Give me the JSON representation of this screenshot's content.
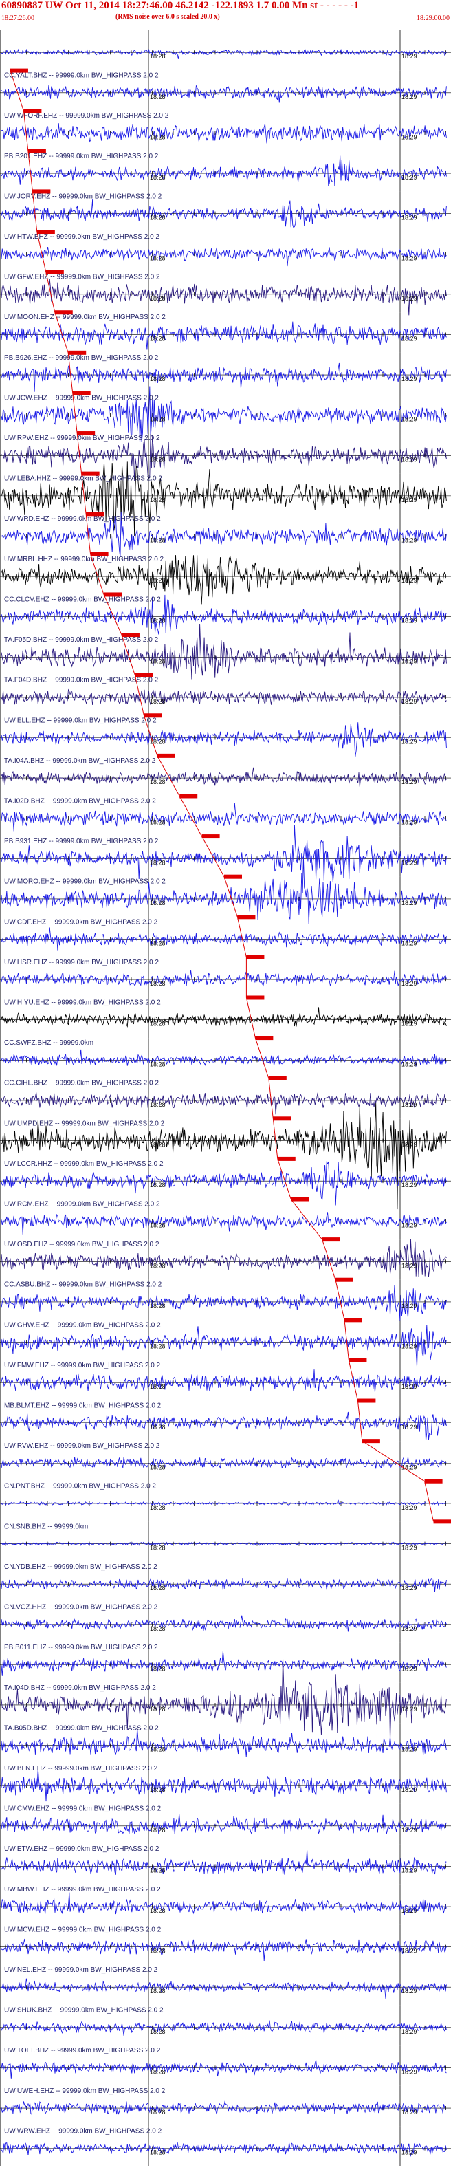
{
  "header": {
    "title": "60890887 UW Oct 11, 2014 18:27:46.00    46.2142  -122.1893   1.7 0.00  Mn st  - - - - -  -1",
    "subtitle": "(RMS noise over 6.0 s scaled 20.0 x)",
    "start_time": "18:27:26.00",
    "end_time": "18:29:00.00"
  },
  "tick_labels": {
    "first": "18:28",
    "second": "18:29"
  },
  "colors": {
    "header": "#d40000",
    "pick": "#e00000",
    "trace_blue": "#1a1ae6",
    "trace_navy": "#2a1a80",
    "trace_black": "#000000",
    "label": "#222266"
  },
  "traces": [
    {
      "label": "",
      "color": "blue",
      "amp": 0.15,
      "burst": null
    },
    {
      "label": "CC.YALT.BHZ -- 99999.0km BW_HIGHPASS  2.0  2",
      "color": "blue",
      "amp": 0.35,
      "burst": null
    },
    {
      "label": "UW.WFORF.EHZ -- 99999.0km BW_HIGHPASS  2.0  2",
      "color": "blue",
      "amp": 0.45,
      "burst": null
    },
    {
      "label": "PB.B201.EHZ -- 99999.0km BW_HIGHPASS  2.0  2",
      "color": "blue",
      "amp": 0.35,
      "burst": [
        0.7,
        0.8
      ]
    },
    {
      "label": "UW.JORV.EHZ -- 99999.0km BW_HIGHPASS  2.0  2",
      "color": "blue",
      "amp": 0.4,
      "burst": [
        0.62,
        0.72
      ]
    },
    {
      "label": "UW.HTW.EHZ -- 99999.0km BW_HIGHPASS  2.0  2",
      "color": "blue",
      "amp": 0.35,
      "burst": null
    },
    {
      "label": "UW.GFW.EHZ -- 99999.0km BW_HIGHPASS  2.0  2",
      "color": "navy",
      "amp": 0.55,
      "burst": null
    },
    {
      "label": "UW.MOON.EHZ -- 99999.0km BW_HIGHPASS  2.0  2",
      "color": "blue",
      "amp": 0.55,
      "burst": null
    },
    {
      "label": "PB.B926.EHZ -- 99999.0km BW_HIGHPASS  2.0  2",
      "color": "blue",
      "amp": 0.45,
      "burst": null
    },
    {
      "label": "UW.JCW.EHZ -- 99999.0km BW_HIGHPASS  2.0  2",
      "color": "blue",
      "amp": 0.5,
      "burst": [
        0.22,
        0.42
      ]
    },
    {
      "label": "UW.RPW.EHZ -- 99999.0km BW_HIGHPASS  2.0  2",
      "color": "navy",
      "amp": 0.5,
      "burst": [
        0.24,
        0.4
      ]
    },
    {
      "label": "UW.LEBA.HHZ -- 99999.0km BW_HIGHPASS  2.0  2",
      "color": "black",
      "amp": 0.75,
      "burst": [
        0.16,
        0.4
      ]
    },
    {
      "label": "UW.WRD.EHZ -- 99999.0km BW_HIGHPASS  2.0  2",
      "color": "blue",
      "amp": 0.45,
      "burst": [
        0.22,
        0.32
      ]
    },
    {
      "label": "UW.MRBL.HHZ -- 99999.0km BW_HIGHPASS  2.0  2",
      "color": "black",
      "amp": 0.55,
      "burst": [
        0.3,
        0.62
      ]
    },
    {
      "label": "CC.CLCV.EHZ -- 99999.0km BW_HIGHPASS  2.0  2",
      "color": "blue",
      "amp": 0.45,
      "burst": [
        0.3,
        0.42
      ]
    },
    {
      "label": "TA.F05D.BHZ -- 99999.0km BW_HIGHPASS  2.0  2",
      "color": "navy",
      "amp": 0.55,
      "burst": [
        0.35,
        0.55
      ]
    },
    {
      "label": "TA.F04D.BHZ -- 99999.0km BW_HIGHPASS  2.0  2",
      "color": "navy",
      "amp": 0.4,
      "burst": null
    },
    {
      "label": "UW.ELL.EHZ -- 99999.0km BW_HIGHPASS  2.0  2",
      "color": "blue",
      "amp": 0.4,
      "burst": [
        0.75,
        0.85
      ]
    },
    {
      "label": "TA.I04A.BHZ -- 99999.0km BW_HIGHPASS  2.0  2",
      "color": "navy",
      "amp": 0.35,
      "burst": null
    },
    {
      "label": "TA.I02D.BHZ -- 99999.0km BW_HIGHPASS  2.0  2",
      "color": "blue",
      "amp": 0.4,
      "burst": null
    },
    {
      "label": "PB.B931.EHZ -- 99999.0km BW_HIGHPASS  2.0  2",
      "color": "blue",
      "amp": 0.45,
      "burst": [
        0.55,
        0.9
      ]
    },
    {
      "label": "UW.MORO.EHZ -- 99999.0km BW_HIGHPASS  2.0  2",
      "color": "blue",
      "amp": 0.5,
      "burst": [
        0.52,
        0.85
      ]
    },
    {
      "label": "UW.CDF.EHZ -- 99999.0km BW_HIGHPASS  2.0  2",
      "color": "blue",
      "amp": 0.35,
      "burst": null
    },
    {
      "label": "UW.HSR.EHZ -- 99999.0km BW_HIGHPASS  2.0  2",
      "color": "blue",
      "amp": 0.35,
      "burst": null
    },
    {
      "label": "UW.HIYU.EHZ -- 99999.0km BW_HIGHPASS  2.0  2",
      "color": "black",
      "amp": 0.35,
      "burst": null
    },
    {
      "label": "CC.SWFZ.BHZ -- 99999.0km",
      "color": "blue",
      "amp": 0.3,
      "burst": null
    },
    {
      "label": "CC.CIHL.BHZ -- 99999.0km BW_HIGHPASS  2.0  2",
      "color": "navy",
      "amp": 0.4,
      "burst": null
    },
    {
      "label": "UW.UMPD.EHZ -- 99999.0km BW_HIGHPASS  2.0  2",
      "color": "black",
      "amp": 0.7,
      "burst": [
        0.66,
        1.0
      ]
    },
    {
      "label": "UW.LCCR.HHZ -- 99999.0km BW_HIGHPASS  2.0  2",
      "color": "blue",
      "amp": 0.45,
      "burst": [
        0.68,
        0.8
      ]
    },
    {
      "label": "UW.RCM.EHZ -- 99999.0km BW_HIGHPASS  2.0  2",
      "color": "blue",
      "amp": 0.35,
      "burst": null
    },
    {
      "label": "UW.OSD.EHZ -- 99999.0km BW_HIGHPASS  2.0  2",
      "color": "navy",
      "amp": 0.45,
      "burst": [
        0.84,
        1.0
      ]
    },
    {
      "label": "CC.ASBU.BHZ -- 99999.0km BW_HIGHPASS  2.0  2",
      "color": "blue",
      "amp": 0.4,
      "burst": [
        0.84,
        0.95
      ]
    },
    {
      "label": "UW.GHW.EHZ -- 99999.0km BW_HIGHPASS  2.0  2",
      "color": "blue",
      "amp": 0.45,
      "burst": [
        0.88,
        1.0
      ]
    },
    {
      "label": "UW.FMW.EHZ -- 99999.0km BW_HIGHPASS  2.0  2",
      "color": "blue",
      "amp": 0.45,
      "burst": null
    },
    {
      "label": "MB.BLMT.EHZ -- 99999.0km BW_HIGHPASS  2.0  2",
      "color": "blue",
      "amp": 0.4,
      "burst": [
        0.92,
        1.0
      ]
    },
    {
      "label": "UW.RVW.EHZ -- 99999.0km BW_HIGHPASS  2.0  2",
      "color": "blue",
      "amp": 0.3,
      "burst": null
    },
    {
      "label": "CN.PNT.BHZ -- 99999.0km BW_HIGHPASS  2.0  2",
      "color": "blue",
      "amp": 0.08,
      "burst": null
    },
    {
      "label": "CN.SNB.BHZ -- 99999.0km",
      "color": "blue",
      "amp": 0.08,
      "burst": null
    },
    {
      "label": "CN.YDB.EHZ -- 99999.0km BW_HIGHPASS  2.0  2",
      "color": "blue",
      "amp": 0.3,
      "burst": null
    },
    {
      "label": "CN.VGZ.HHZ -- 99999.0km BW_HIGHPASS  2.0  2",
      "color": "blue",
      "amp": 0.3,
      "burst": null
    },
    {
      "label": "PB.B011.EHZ -- 99999.0km BW_HIGHPASS  2.0  2",
      "color": "blue",
      "amp": 0.35,
      "burst": null
    },
    {
      "label": "TA.I04D.BHZ -- 99999.0km BW_HIGHPASS  2.0  2",
      "color": "navy",
      "amp": 0.55,
      "burst": [
        0.4,
        1.0
      ]
    },
    {
      "label": "TA.B05D.BHZ -- 99999.0km BW_HIGHPASS  2.0  2",
      "color": "blue",
      "amp": 0.5,
      "burst": null
    },
    {
      "label": "UW.BLN.EHZ -- 99999.0km BW_HIGHPASS  2.0  2",
      "color": "blue",
      "amp": 0.5,
      "burst": null
    },
    {
      "label": "UW.CMW.EHZ -- 99999.0km BW_HIGHPASS  2.0  2",
      "color": "blue",
      "amp": 0.45,
      "burst": null
    },
    {
      "label": "UW.ETW.EHZ -- 99999.0km BW_HIGHPASS  2.0  2",
      "color": "blue",
      "amp": 0.45,
      "burst": null
    },
    {
      "label": "UW.MBW.EHZ -- 99999.0km BW_HIGHPASS  2.0  2",
      "color": "blue",
      "amp": 0.4,
      "burst": null
    },
    {
      "label": "UW.MCW.EHZ -- 99999.0km BW_HIGHPASS  2.0  2",
      "color": "blue",
      "amp": 0.4,
      "burst": null
    },
    {
      "label": "UW.NEL.EHZ -- 99999.0km BW_HIGHPASS  2.0  2",
      "color": "blue",
      "amp": 0.3,
      "burst": null
    },
    {
      "label": "UW.SHUK.BHZ -- 99999.0km BW_HIGHPASS  2.0  2",
      "color": "blue",
      "amp": 0.3,
      "burst": null
    },
    {
      "label": "UW.TOLT.BHZ -- 99999.0km BW_HIGHPASS  2.0  2",
      "color": "blue",
      "amp": 0.3,
      "burst": null
    },
    {
      "label": "UW.UWEH.EHZ -- 99999.0km BW_HIGHPASS  2.0  2",
      "color": "blue",
      "amp": 0.35,
      "burst": null
    },
    {
      "label": "UW.WRW.EHZ -- 99999.0km BW_HIGHPASS  2.0  2",
      "color": "blue",
      "amp": 0.3,
      "burst": null
    }
  ],
  "picks": [
    0.02,
    0.05,
    0.06,
    0.07,
    0.08,
    0.1,
    0.12,
    0.15,
    0.16,
    0.17,
    0.18,
    0.19,
    0.2,
    0.23,
    0.27,
    0.3,
    0.32,
    0.35,
    0.4,
    0.45,
    0.5,
    0.53,
    0.55,
    0.55,
    0.57,
    0.6,
    0.61,
    0.62,
    0.65,
    0.72,
    0.75,
    0.77,
    0.78,
    0.8,
    0.81,
    0.95,
    0.97
  ]
}
